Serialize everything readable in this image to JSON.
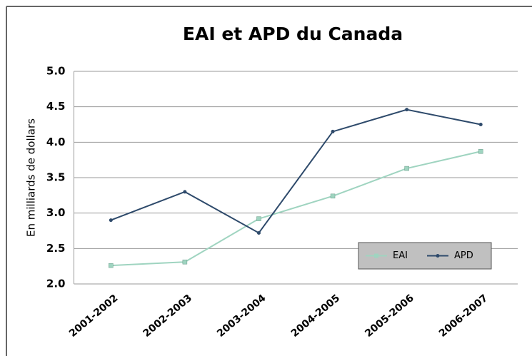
{
  "chart_data": {
    "type": "line",
    "title": "EAI et APD du Canada",
    "y_label": "En milliards de dollars",
    "categories": [
      "2001-2002",
      "2002-2003",
      "2003-2004",
      "2004-2005",
      "2005-2006",
      "2006-2007"
    ],
    "series": [
      {
        "name": "EAI",
        "color": "#9fd4c0",
        "values": [
          2.26,
          2.31,
          2.92,
          3.24,
          3.63,
          3.87
        ]
      },
      {
        "name": "APD",
        "color": "#2e4a6b",
        "values": [
          2.9,
          3.3,
          2.72,
          4.15,
          4.46,
          4.25
        ]
      }
    ],
    "ylim": [
      2,
      5
    ],
    "yticks": [
      {
        "value": 2,
        "label": "2.0"
      },
      2.5,
      {
        "value": 3,
        "label": "3.0"
      },
      3.5,
      {
        "value": 4,
        "label": "4.0"
      },
      4.5,
      {
        "value": 5,
        "label": "5.0"
      }
    ],
    "grid": true,
    "legend": "lower right"
  }
}
